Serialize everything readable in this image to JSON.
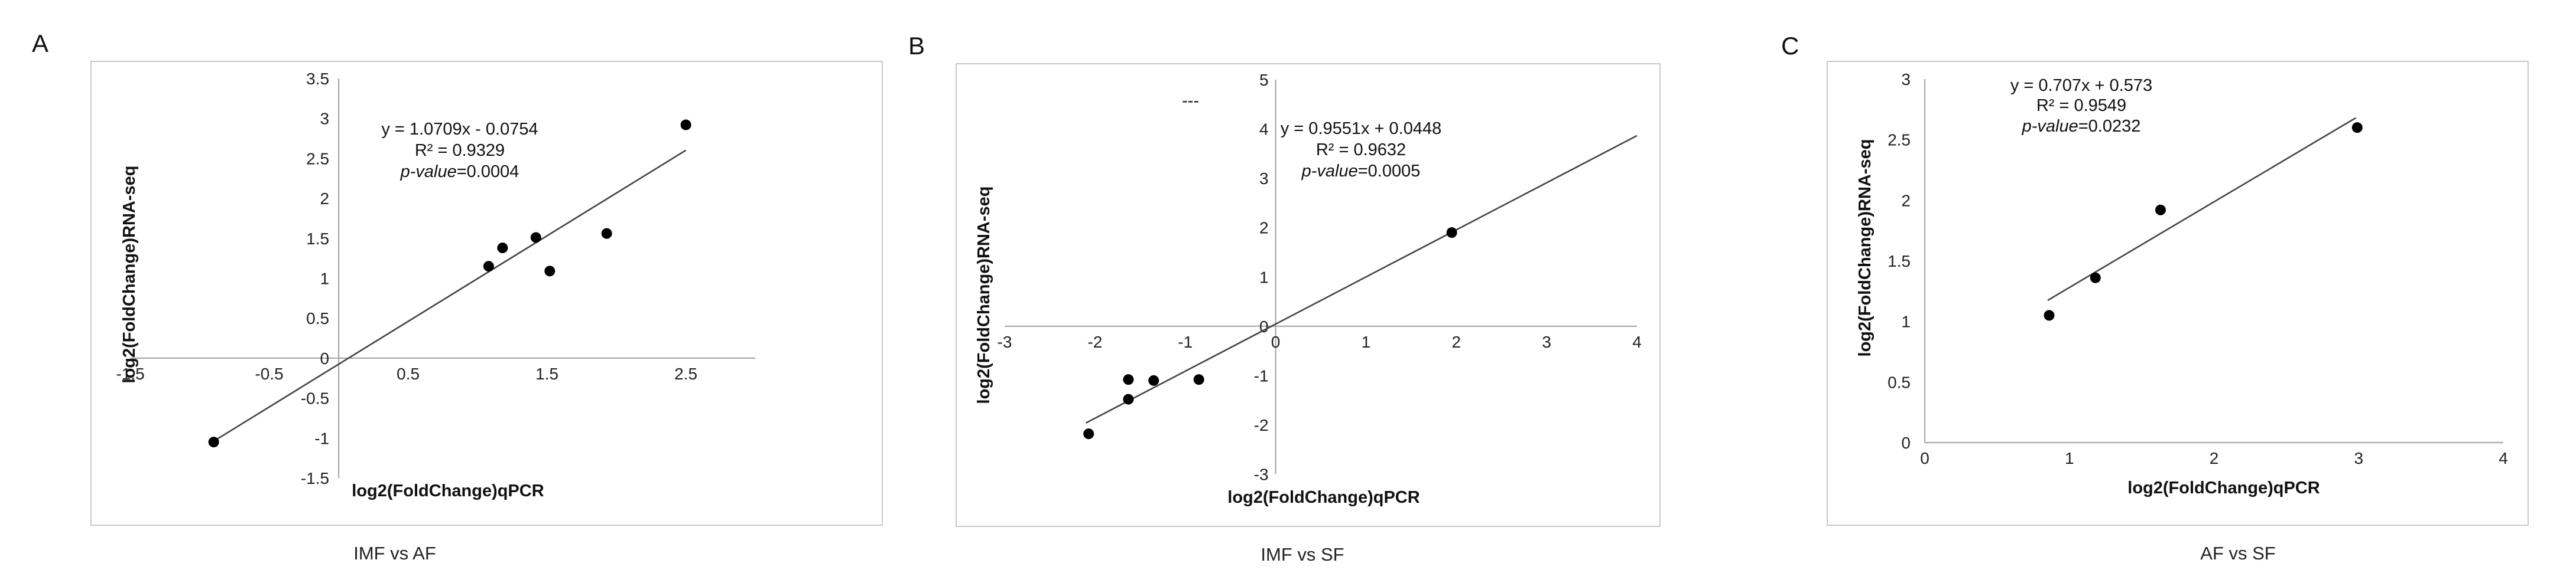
{
  "figure": {
    "panels": [
      {
        "letter": "A",
        "caption": "IMF vs AF"
      },
      {
        "letter": "B",
        "caption": "IMF vs SF"
      },
      {
        "letter": "C",
        "caption": "AF vs SF"
      }
    ]
  },
  "chart_data": [
    {
      "type": "scatter",
      "panel": "A",
      "title": "",
      "xlabel": "log2(FoldChange)qPCR",
      "ylabel": "log2(FoldChange)RNA-seq",
      "xlim": [
        -1.5,
        3.0
      ],
      "ylim": [
        -1.5,
        3.5
      ],
      "x_ticks": [
        "-1.5",
        "-0.5",
        "0.5",
        "1.5",
        "2.5"
      ],
      "y_ticks": [
        "-1.5",
        "-1",
        "-0.5",
        "0",
        "0.5",
        "1",
        "1.5",
        "2",
        "2.5",
        "3",
        "3.5"
      ],
      "x": [
        -0.9,
        1.08,
        1.18,
        1.42,
        1.52,
        1.93,
        2.5
      ],
      "y": [
        -1.05,
        1.15,
        1.38,
        1.51,
        1.09,
        1.56,
        2.92
      ],
      "trendline": {
        "slope": 1.0709,
        "intercept": -0.0754,
        "x_range": [
          -0.9,
          2.5
        ]
      },
      "annotation": {
        "equation": "y = 1.0709x - 0.0754",
        "r2": "R² = 0.9329",
        "p_label": "p-value",
        "p_value": "=0.0004"
      },
      "caption": "IMF vs AF",
      "grid": false,
      "legend": "none"
    },
    {
      "type": "scatter",
      "panel": "B",
      "title": "",
      "xlabel": "log2(FoldChange)qPCR",
      "ylabel": "log2(FoldChange)RNA-seq",
      "xlim": [
        -3,
        4
      ],
      "ylim": [
        -3,
        5
      ],
      "x_ticks": [
        "-3",
        "-2",
        "-1",
        "0",
        "1",
        "2",
        "3",
        "4"
      ],
      "y_ticks": [
        "-3",
        "-2",
        "-1",
        "0",
        "1",
        "2",
        "3",
        "4",
        "5"
      ],
      "x": [
        -2.07,
        -1.63,
        -1.63,
        -1.35,
        -0.85,
        1.95
      ],
      "y": [
        -2.18,
        -1.48,
        -1.08,
        -1.1,
        -1.08,
        1.9
      ],
      "trendline": {
        "slope": 0.9551,
        "intercept": 0.0448,
        "x_range": [
          -2.1,
          4.0
        ]
      },
      "annotation": {
        "equation": "y = 0.9551x + 0.0448",
        "r2": "R² = 0.9632",
        "p_label": "p-value",
        "p_value": "=0.0005"
      },
      "stray_mark": "---",
      "caption": "IMF vs SF",
      "grid": false,
      "legend": "none"
    },
    {
      "type": "scatter",
      "panel": "C",
      "title": "",
      "xlabel": "log2(FoldChange)qPCR",
      "ylabel": "log2(FoldChange)RNA-seq",
      "xlim": [
        0,
        4
      ],
      "ylim": [
        0,
        3
      ],
      "x_ticks": [
        "0",
        "1",
        "2",
        "3",
        "4"
      ],
      "y_ticks": [
        "0",
        "0.5",
        "1",
        "1.5",
        "2",
        "2.5",
        "3"
      ],
      "x": [
        0.86,
        1.18,
        1.63,
        2.99
      ],
      "y": [
        1.05,
        1.36,
        1.92,
        2.6
      ],
      "trendline": {
        "slope": 0.707,
        "intercept": 0.573,
        "x_range": [
          0.85,
          2.98
        ]
      },
      "annotation": {
        "equation": "y = 0.707x + 0.573",
        "r2": "R² = 0.9549",
        "p_label": "p-value",
        "p_value": "=0.0232"
      },
      "caption": "AF vs SF",
      "grid": false,
      "legend": "none"
    }
  ]
}
